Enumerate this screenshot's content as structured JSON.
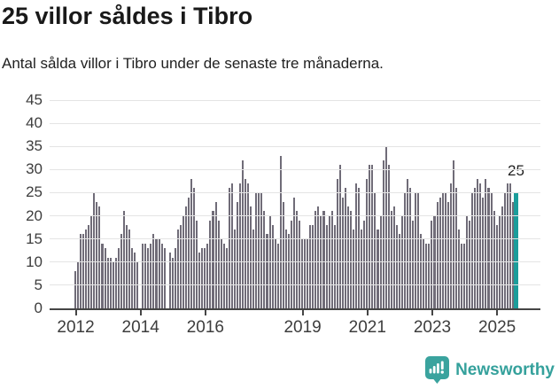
{
  "header": {
    "title": "25 villor såldes i Tibro",
    "subtitle": "Antal sålda villor i Tibro under de senaste tre månaderna."
  },
  "chart_data": {
    "type": "bar",
    "title": "25 villor såldes i Tibro",
    "subtitle": "Antal sålda villor i Tibro under de senaste tre månaderna.",
    "x_period": "monthly, Jan 2012 – Aug 2025",
    "values": [
      8,
      10,
      16,
      16,
      17,
      18,
      20,
      25,
      23,
      22,
      14,
      13,
      11,
      11,
      10,
      11,
      13,
      16,
      21,
      18,
      17,
      13,
      12,
      10,
      0,
      14,
      14,
      13,
      14,
      16,
      15,
      15,
      14,
      13,
      0,
      12,
      11,
      13,
      17,
      18,
      20,
      22,
      24,
      28,
      26,
      19,
      12,
      13,
      13,
      14,
      19,
      21,
      23,
      19,
      15,
      14,
      13,
      26,
      27,
      17,
      23,
      27,
      32,
      28,
      27,
      22,
      17,
      25,
      25,
      25,
      21,
      16,
      20,
      18,
      15,
      14,
      33,
      23,
      17,
      16,
      19,
      24,
      21,
      19,
      15,
      15,
      15,
      18,
      18,
      21,
      22,
      20,
      21,
      18,
      20,
      21,
      18,
      28,
      31,
      24,
      26,
      22,
      21,
      17,
      27,
      26,
      17,
      19,
      28,
      31,
      31,
      25,
      17,
      20,
      32,
      35,
      31,
      21,
      22,
      18,
      16,
      20,
      25,
      28,
      26,
      19,
      25,
      25,
      16,
      15,
      14,
      14,
      19,
      20,
      23,
      24,
      25,
      25,
      23,
      27,
      32,
      26,
      17,
      14,
      14,
      20,
      19,
      25,
      26,
      28,
      27,
      24,
      28,
      26,
      25,
      21,
      18,
      20,
      22,
      25,
      27,
      27,
      23,
      25
    ],
    "x_tick_labels": [
      "2012",
      "2014",
      "2016",
      "2019",
      "2021",
      "2023",
      "2025"
    ],
    "x_tick_indices": [
      0,
      24,
      48,
      84,
      108,
      132,
      156
    ],
    "y_ticks": [
      0,
      5,
      10,
      15,
      20,
      25,
      30,
      35,
      40,
      45
    ],
    "ylim": [
      0,
      45
    ],
    "grid": true,
    "legend": false,
    "bar_color": "#706c78",
    "highlight": {
      "index": 163,
      "value": 25,
      "label": "25",
      "color": "#1b9d9b"
    }
  },
  "branding": {
    "logo_text": "Newsworthy",
    "logo_color": "#35a19c",
    "logo_icon": "speech-bubble-bar-chart-icon"
  },
  "colors": {
    "background": "#ffffff",
    "title": "#191919",
    "subtitle": "#212121",
    "axis_labels": "#3d3d3d",
    "gridline": "#e4e4e4",
    "axis_line": "#454545",
    "bar": "#706c78",
    "highlight": "#1b9d9b"
  }
}
